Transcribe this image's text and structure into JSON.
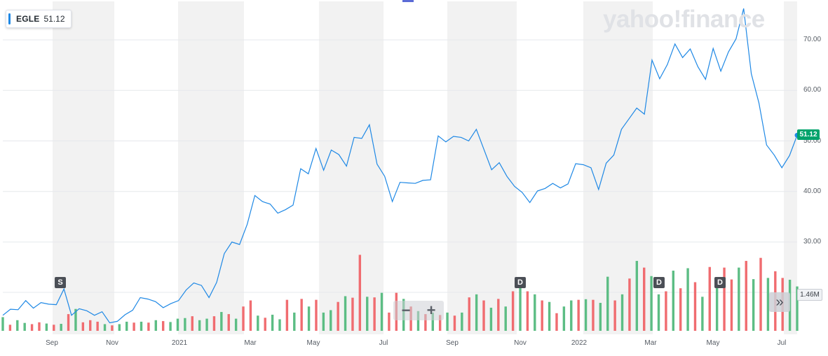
{
  "ticker": {
    "symbol": "EGLE",
    "last_price": "51.12"
  },
  "brand": {
    "logo_text": "yahoo!finance"
  },
  "colors": {
    "line": "#1e88e5",
    "volume_up": "#5cbd84",
    "volume_down": "#f06c70",
    "last_price_tag": "#00a36c",
    "band": "#f2f2f2"
  },
  "controls": {
    "zoom_out_icon": "minus-icon",
    "zoom_in_icon": "plus-icon",
    "expand_icon": "double-chevron-right-icon",
    "zoom_out": "−",
    "zoom_in": "+",
    "expand": "»"
  },
  "events": [
    {
      "label": "S",
      "date": "2020-09-07"
    },
    {
      "label": "D",
      "date": "2021-11-01"
    },
    {
      "label": "D",
      "date": "2022-02-28"
    },
    {
      "label": "D",
      "date": "2022-05-23"
    }
  ],
  "volume_last_label": "1.46M",
  "chart_data": {
    "type": "line",
    "title": "",
    "xlabel": "",
    "ylabel": "",
    "x_tick_labels": [
      "Sep",
      "Nov",
      "2021",
      "Mar",
      "May",
      "Jul",
      "Sep",
      "Nov",
      "2022",
      "Mar",
      "May",
      "Jul"
    ],
    "y_tick_labels": [
      "30.00",
      "40.00",
      "50.00",
      "60.00",
      "70.00"
    ],
    "ylim": [
      12.5,
      77
    ],
    "grid": true,
    "series": [
      {
        "values": [
          15.5,
          16.7,
          16.6,
          18.4,
          16.9,
          18.0,
          17.7,
          17.6,
          20.7,
          15.5,
          16.8,
          16.4,
          15.5,
          16.2,
          14.0,
          14.3,
          15.6,
          16.5,
          19.0,
          18.7,
          18.2,
          17.0,
          17.8,
          18.4,
          20.5,
          21.9,
          21.4,
          19.0,
          22.0,
          27.7,
          30.0,
          29.5,
          33.5,
          39.2,
          38.0,
          37.5,
          35.7,
          36.4,
          37.3,
          44.5,
          43.5,
          48.5,
          44.2,
          48.2,
          47.3,
          45.0,
          50.7,
          50.5,
          53.2,
          45.4,
          43.0,
          38.0,
          41.8,
          41.7,
          41.6,
          42.2,
          42.3,
          51.0,
          49.8,
          50.9,
          50.7,
          50.0,
          52.3,
          48.3,
          44.3,
          45.7,
          43.0,
          41.0,
          39.8,
          37.8,
          40.1,
          40.6,
          41.6,
          40.7,
          41.5,
          45.5,
          45.3,
          44.7,
          40.4,
          45.6,
          47.2,
          52.3,
          54.4,
          56.5,
          55.3,
          66.0,
          62.3,
          65.1,
          69.2,
          66.5,
          68.2,
          64.7,
          62.2,
          68.3,
          63.8,
          67.6,
          70.2,
          76.2,
          63.3,
          57.5,
          49.2,
          47.2,
          44.7,
          47.1,
          51.12
        ]
      }
    ],
    "volume": {
      "label": "1.46M",
      "ylim": [
        0,
        2.6
      ],
      "values": [
        0.45,
        0.2,
        0.35,
        0.26,
        0.22,
        0.28,
        0.24,
        0.2,
        0.23,
        0.55,
        0.72,
        0.28,
        0.35,
        0.3,
        0.22,
        0.18,
        0.22,
        0.3,
        0.27,
        0.3,
        0.27,
        0.35,
        0.32,
        0.29,
        0.4,
        0.42,
        0.48,
        0.35,
        0.4,
        0.48,
        0.62,
        0.55,
        0.4,
        0.8,
        1.0,
        0.5,
        0.43,
        0.53,
        0.38,
        1.02,
        0.6,
        1.05,
        0.8,
        1.02,
        0.6,
        0.68,
        0.95,
        1.14,
        1.09,
        2.5,
        1.12,
        1.1,
        1.25,
        0.6,
        1.25,
        1.05,
        0.8,
        0.65,
        0.55,
        0.6,
        0.52,
        0.6,
        0.5,
        0.6,
        1.1,
        1.2,
        1.0,
        0.76,
        1.05,
        0.8,
        1.3,
        1.5,
        1.3,
        1.2,
        1.0,
        0.95,
        0.58,
        0.8,
        1.0,
        1.02,
        1.04,
        1.02,
        0.92,
        1.78,
        1.0,
        1.2,
        1.72,
        2.3,
        2.08,
        1.8,
        1.2,
        1.3,
        1.98,
        1.4,
        2.06,
        1.6,
        1.12,
        2.1,
        1.68,
        2.08,
        1.69,
        2.08,
        2.3,
        1.7,
        2.4,
        1.74,
        1.96,
        1.74,
        1.68,
        1.46
      ],
      "up": [
        true,
        false,
        true,
        true,
        false,
        false,
        true,
        false,
        true,
        false,
        true,
        false,
        false,
        false,
        true,
        false,
        true,
        true,
        false,
        true,
        false,
        true,
        false,
        true,
        true,
        true,
        false,
        true,
        true,
        false,
        true,
        false,
        true,
        false,
        false,
        true,
        false,
        true,
        true,
        false,
        true,
        false,
        true,
        false,
        true,
        true,
        false,
        true,
        false,
        false,
        true,
        false,
        true,
        false,
        false,
        true,
        false,
        true,
        false,
        true,
        false,
        true,
        false,
        true,
        false,
        true,
        false,
        true,
        false,
        true,
        false,
        true,
        false,
        true,
        false,
        true,
        false,
        true,
        true,
        false,
        true,
        false,
        true,
        true,
        false,
        true,
        false,
        true,
        false,
        true,
        true,
        false,
        true,
        false,
        true,
        false,
        true,
        false,
        true,
        false,
        false,
        true,
        false,
        true,
        false,
        true,
        false,
        false,
        true,
        true
      ]
    }
  }
}
